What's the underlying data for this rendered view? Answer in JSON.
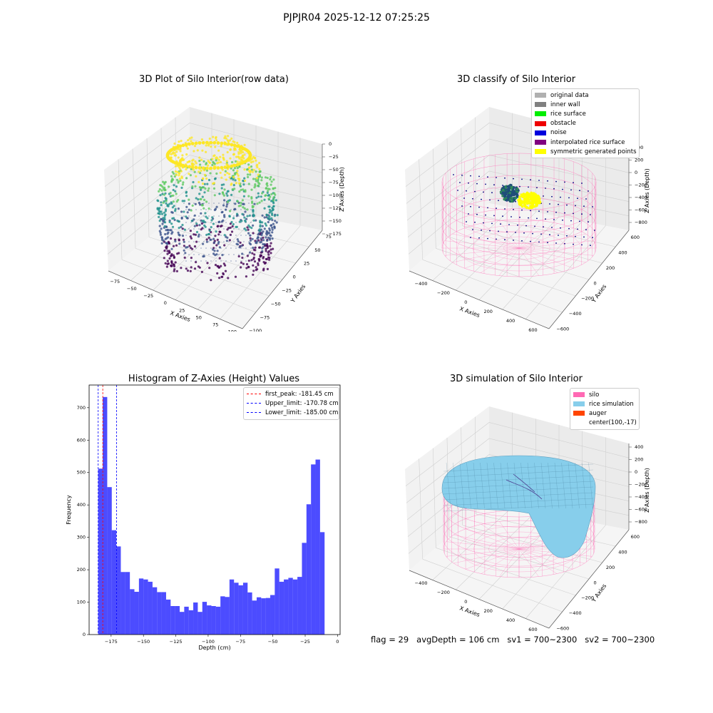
{
  "figure": {
    "suptitle": "PJPJR04 2025-12-12 07:25:25",
    "footer": {
      "flag": "flag = 29",
      "avg_depth": "avgDepth = 106 cm",
      "sv1": "sv1 = 700~2300",
      "sv2": "sv2 = 700~2300"
    }
  },
  "panels": {
    "raw": {
      "title": "3D Plot of Silo Interior(row data)",
      "xlabel": "X Axies",
      "ylabel": "Y Axies",
      "zlabel": "Z Axies (Depth)",
      "xticks": [
        "−75",
        "−50",
        "−25",
        "0",
        "25",
        "50",
        "75",
        "100"
      ],
      "yticks": [
        "−100",
        "−75",
        "−50",
        "−25",
        "0",
        "25",
        "50",
        "75"
      ],
      "zticks": [
        "0",
        "−25",
        "−50",
        "−75",
        "−100",
        "−125",
        "−150",
        "−175"
      ],
      "colormap": [
        "#440154",
        "#3b528b",
        "#21918c",
        "#5ec962",
        "#fde725"
      ]
    },
    "classify": {
      "title": "3D classify of Silo Interior",
      "xlabel": "X Axies",
      "ylabel": "Y Axies",
      "zlabel": "Z Axies (Depth)",
      "xticks": [
        "−400",
        "−200",
        "0",
        "200",
        "400",
        "600"
      ],
      "yticks": [
        "−600",
        "−400",
        "−200",
        "0",
        "200",
        "400",
        "600"
      ],
      "zticks": [
        "400",
        "200",
        "0",
        "−200",
        "−400",
        "−600",
        "−800"
      ],
      "legend": [
        {
          "label": "original data",
          "color": "#b0b0b0"
        },
        {
          "label": "inner wall",
          "color": "#808080"
        },
        {
          "label": "rice surface",
          "color": "#00ee00"
        },
        {
          "label": "obstacle",
          "color": "#ee0000"
        },
        {
          "label": "noise",
          "color": "#0000dd"
        },
        {
          "label": "interpolated rice surface",
          "color": "#800080"
        },
        {
          "label": "symmetric generated points",
          "color": "#ffff00"
        }
      ]
    },
    "simulation": {
      "title": "3D simulation of Silo Interior",
      "xlabel": "X Axies",
      "ylabel": "Y Axies",
      "zlabel": "Z Axies (Depth)",
      "xticks": [
        "−400",
        "−200",
        "0",
        "200",
        "400",
        "600"
      ],
      "yticks": [
        "−600",
        "−400",
        "−200",
        "0",
        "200",
        "400",
        "600"
      ],
      "zticks": [
        "400",
        "200",
        "0",
        "−200",
        "−400",
        "−600",
        "−800"
      ],
      "legend": [
        {
          "label": "silo",
          "color": "#ff69b4"
        },
        {
          "label": "rice simulation",
          "color": "#87ceeb"
        },
        {
          "label": "auger",
          "color": "#ff4500"
        },
        {
          "label": "center(100,-17)",
          "color": ""
        }
      ]
    }
  },
  "chart_data": [
    {
      "type": "bar",
      "title": "Histogram of Z-Axies (Height) Values",
      "xlabel": "Depth (cm)",
      "ylabel": "Frequency",
      "xlim": [
        -192,
        2
      ],
      "ylim": [
        0,
        770
      ],
      "xticks": [
        -175,
        -150,
        -125,
        -100,
        -75,
        -50,
        -25,
        0
      ],
      "yticks": [
        0,
        100,
        200,
        300,
        400,
        500,
        600,
        700
      ],
      "bar_color": "#0000ff",
      "bin_start": -185,
      "bin_width": 3.5,
      "values": [
        512,
        733,
        455,
        322,
        272,
        193,
        193,
        140,
        132,
        173,
        170,
        163,
        146,
        131,
        131,
        108,
        88,
        88,
        70,
        86,
        75,
        99,
        70,
        101,
        90,
        88,
        86,
        118,
        116,
        170,
        160,
        152,
        160,
        130,
        105,
        115,
        112,
        113,
        122,
        204,
        163,
        170,
        175,
        170,
        178,
        283,
        402,
        525,
        540,
        316
      ],
      "vlines": [
        {
          "label": "first_peak: -181.45 cm",
          "x": -181.45,
          "color": "#ff0000"
        },
        {
          "label": "Upper_limit: -170.78 cm",
          "x": -170.78,
          "color": "#0000ff"
        },
        {
          "label": "Lower_limit: -185.00 cm",
          "x": -185.0,
          "color": "#0000ff"
        }
      ],
      "legend_position": "upper right"
    }
  ]
}
